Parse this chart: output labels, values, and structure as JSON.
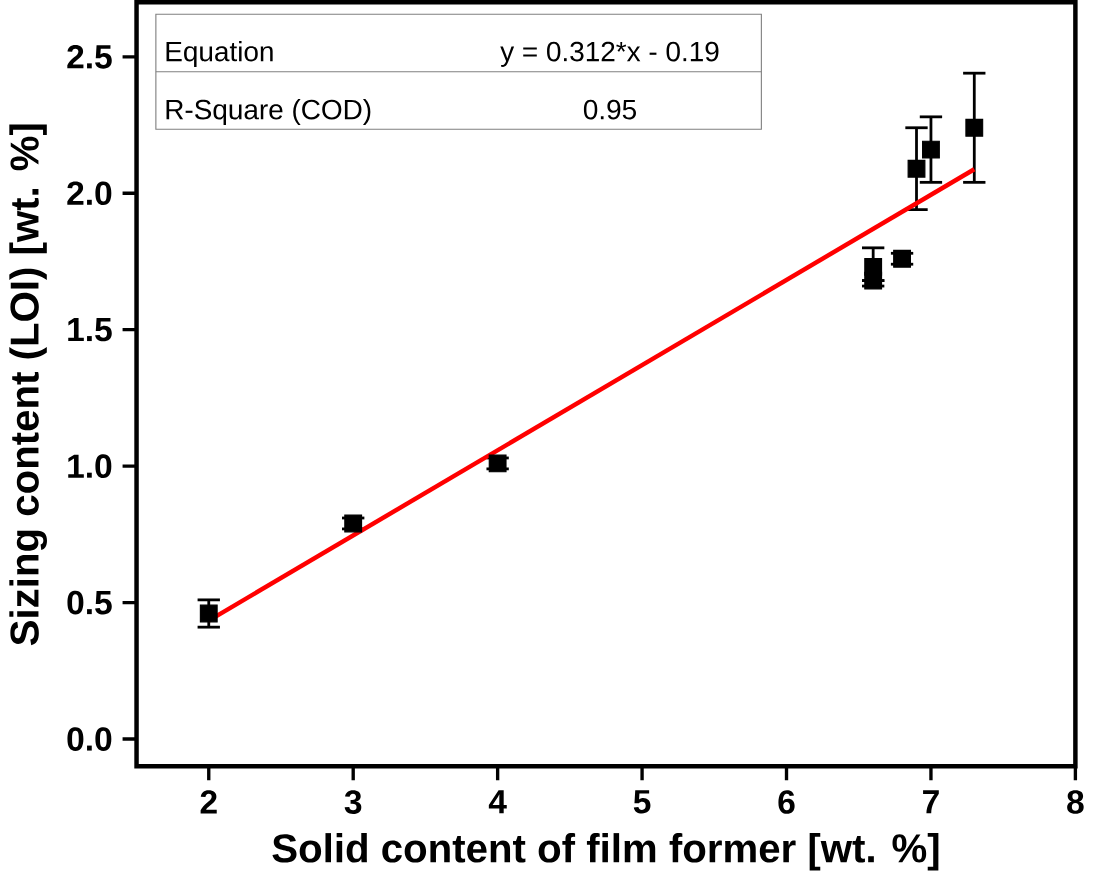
{
  "chart_data": {
    "type": "scatter",
    "xlabel": "Solid content of film former [wt. %]",
    "ylabel": "Sizing content (LOI) [wt. %]",
    "xlim": [
      1.5,
      8
    ],
    "ylim": [
      -0.1,
      2.7
    ],
    "xticks": [
      2,
      3,
      4,
      5,
      6,
      7,
      8
    ],
    "yticks": [
      {
        "value": 0,
        "label": "0.0"
      },
      {
        "value": 0.5,
        "label": "0.5"
      },
      {
        "value": 1,
        "label": "1.0"
      },
      {
        "value": 1.5,
        "label": "1.5"
      },
      {
        "value": 2,
        "label": "2.0"
      },
      {
        "value": 2.5,
        "label": "2.5"
      }
    ],
    "grid": false,
    "series": [
      {
        "color": "#000000",
        "marker": "square",
        "x": [
          2,
          3,
          4,
          6.6,
          6.6,
          6.8,
          6.9,
          7.0,
          7.3
        ],
        "values": [
          0.46,
          0.79,
          1.01,
          1.73,
          1.68,
          1.76,
          2.09,
          2.16,
          2.24
        ],
        "errors": [
          0.05,
          0.02,
          0.02,
          0.07,
          null,
          0.02,
          0.15,
          0.12,
          0.2
        ]
      },
      {
        "type": "line",
        "color": "#ff0000",
        "marker": "none",
        "x": [
          2,
          7.3
        ],
        "values": [
          0.434,
          2.088
        ]
      }
    ],
    "annotations": [
      "Equation",
      "y = 0.312*x - 0.19",
      "R-Square (COD)",
      "0.95"
    ]
  }
}
